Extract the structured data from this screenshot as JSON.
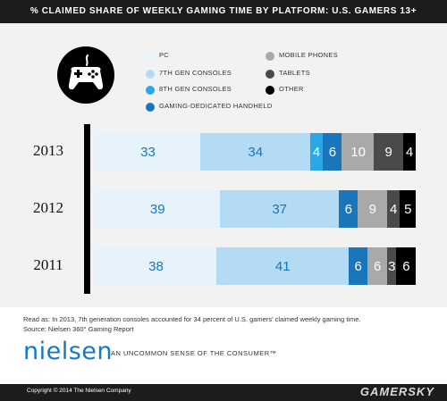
{
  "header": {
    "title": "% CLAIMED SHARE OF WEEKLY GAMING TIME BY PLATFORM: U.S. GAMERS 13+"
  },
  "icon": {
    "name": "gamepad-icon"
  },
  "colors": {
    "pc": "#e6f3fb",
    "gen7": "#b3dcf4",
    "gen8": "#2aa7e6",
    "handheld": "#1a75bb",
    "mobile": "#a9a9a9",
    "tablets": "#4a4a4a",
    "other": "#000000"
  },
  "legend": [
    {
      "key": "pc",
      "label": "PC"
    },
    {
      "key": "gen7",
      "label": "7TH GEN CONSOLES"
    },
    {
      "key": "gen8",
      "label": "8TH GEN CONSOLES"
    },
    {
      "key": "handheld",
      "label": "GAMING-DEDICATED HANDHELD"
    },
    {
      "key": "mobile",
      "label": "MOBILE PHONES"
    },
    {
      "key": "tablets",
      "label": "TABLETS"
    },
    {
      "key": "other",
      "label": "OTHER"
    }
  ],
  "chart_data": {
    "type": "bar",
    "orientation": "horizontal-stacked",
    "title": "% CLAIMED SHARE OF WEEKLY GAMING TIME BY PLATFORM: U.S. GAMERS 13+",
    "categories": [
      "2013",
      "2012",
      "2011"
    ],
    "series": [
      {
        "name": "PC",
        "key": "pc",
        "values": [
          33,
          39,
          38
        ]
      },
      {
        "name": "7TH GEN CONSOLES",
        "key": "gen7",
        "values": [
          34,
          37,
          41
        ]
      },
      {
        "name": "8TH GEN CONSOLES",
        "key": "gen8",
        "values": [
          4,
          0,
          0
        ]
      },
      {
        "name": "GAMING-DEDICATED HANDHELD",
        "key": "handheld",
        "values": [
          6,
          6,
          6
        ]
      },
      {
        "name": "MOBILE PHONES",
        "key": "mobile",
        "values": [
          10,
          9,
          6
        ]
      },
      {
        "name": "TABLETS",
        "key": "tablets",
        "values": [
          9,
          4,
          3
        ]
      },
      {
        "name": "OTHER",
        "key": "other",
        "values": [
          4,
          5,
          6
        ]
      }
    ]
  },
  "notes": {
    "read_as": "Read as: In 2013, 7th generation consoles accounted for 34 percent of U.S. gamers' claimed weekly gaming time.",
    "source": "Source: Nielsen 360° Gaming Report"
  },
  "brand": {
    "logo": "nielsen",
    "tagline": "AN UNCOMMON SENSE OF THE CONSUMER™"
  },
  "footer": {
    "copyright": "Copyright © 2014 The Nielsen Company",
    "watermark": "GAMERSKY"
  }
}
